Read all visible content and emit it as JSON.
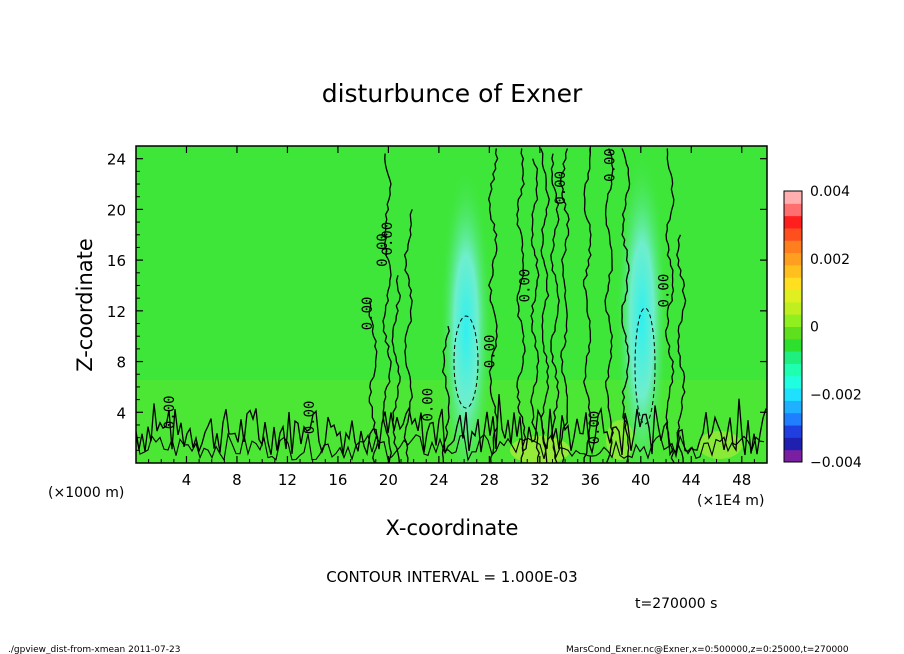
{
  "chart_data": {
    "type": "heatmap",
    "title": "disturbunce of Exner",
    "xlabel": "X-coordinate",
    "ylabel": "Z-coordinate",
    "x_unit_left": "(×1000 m)",
    "x_unit_right": "(×1E4 m)",
    "x_ticks": [
      "4",
      "8",
      "12",
      "16",
      "20",
      "24",
      "28",
      "32",
      "36",
      "40",
      "44",
      "48"
    ],
    "y_ticks": [
      "4",
      "8",
      "12",
      "16",
      "20",
      "24"
    ],
    "xlim": [
      0,
      50
    ],
    "ylim": [
      0,
      25
    ],
    "contour_interval_text": "CONTOUR INTERVAL = 1.000E-03",
    "time_text": "t=270000 s",
    "contour_label": "0.00",
    "colorbar": {
      "ticks": [
        "0.004",
        "0.002",
        "0",
        "−0.002",
        "−0.004"
      ],
      "range": [
        -0.004,
        0.004
      ],
      "colors": [
        "#7a1fa2",
        "#1f1fb0",
        "#1f3fe0",
        "#1f7fff",
        "#1fb0ff",
        "#1fe0ff",
        "#1fffe0",
        "#1fffb0",
        "#1fef7f",
        "#2ee02e",
        "#5fe01f",
        "#8fef1f",
        "#c0ef1f",
        "#e0ef1f",
        "#ffdf1f",
        "#ffbf1f",
        "#ff9f1f",
        "#ff7f1f",
        "#ff4f1f",
        "#ff1f1f",
        "#ff6f6f",
        "#ffafaf"
      ]
    },
    "anomalies": [
      {
        "name": "negative core",
        "x": 26,
        "z": 8,
        "sign": "negative"
      },
      {
        "name": "negative core",
        "x": 40.5,
        "z": 8,
        "sign": "negative"
      }
    ]
  },
  "footer": {
    "left": "./gpview_dist-from-xmean  2011-07-23",
    "right": "MarsCond_Exner.nc@Exner,x=0:500000,z=0:25000,t=270000"
  },
  "colors": {
    "background_field": "#3ee63a",
    "negative_light": "#7ff0c0",
    "negative_core": "#2ff0f0",
    "positive_light": "#b6ef3a"
  }
}
